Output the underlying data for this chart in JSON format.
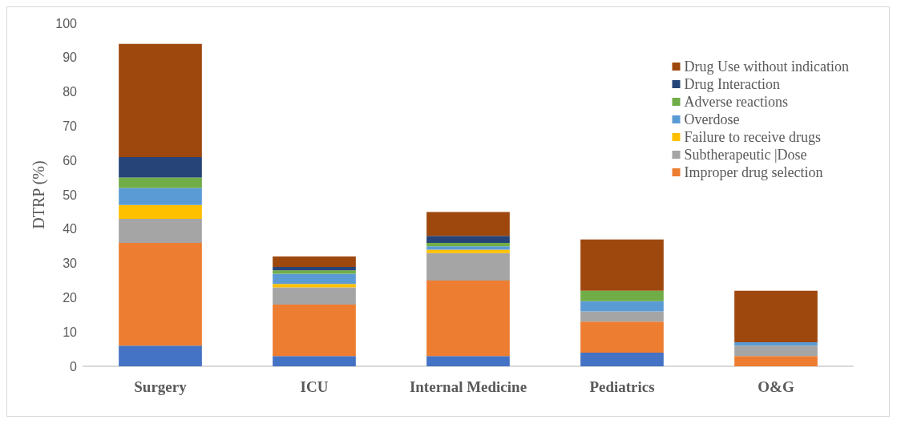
{
  "chart_data": {
    "type": "bar",
    "stacked": true,
    "ylabel": "DTRP (%)",
    "categories": [
      "Surgery",
      "ICU",
      "Internal Medicine",
      "Pediatrics",
      "O&G"
    ],
    "ylim": [
      0,
      100
    ],
    "yticks": [
      0,
      10,
      20,
      30,
      40,
      50,
      60,
      70,
      80,
      90,
      100
    ],
    "grid": false,
    "legend": "top right",
    "series": [
      {
        "color": "#4472c4",
        "values": [
          6,
          3,
          3,
          4,
          0
        ]
      },
      {
        "name": "Improper drug selection",
        "color": "#ed7d31",
        "values": [
          30,
          15,
          22,
          9,
          3
        ]
      },
      {
        "name": "Subtherapeutic |Dose",
        "color": "#a5a5a5",
        "values": [
          7,
          5,
          8,
          3,
          3
        ]
      },
      {
        "name": "Failure to receive drugs",
        "color": "#ffc000",
        "values": [
          4,
          1,
          1,
          0,
          0
        ]
      },
      {
        "name": "Overdose",
        "color": "#5b9bd5",
        "values": [
          5,
          3,
          1,
          3,
          1
        ]
      },
      {
        "name": "Adverse reactions",
        "color": "#70ad47",
        "values": [
          3,
          1,
          1,
          3,
          0
        ]
      },
      {
        "name": "Drug Interaction",
        "color": "#264478",
        "values": [
          6,
          1,
          2,
          0,
          0
        ]
      },
      {
        "name": "Drug Use without indication",
        "color": "#9e480e",
        "values": [
          33,
          3,
          7,
          15,
          15
        ]
      }
    ]
  }
}
